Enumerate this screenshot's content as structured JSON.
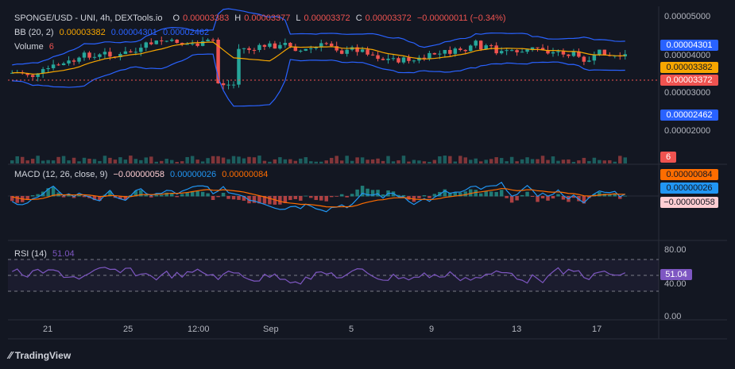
{
  "header": {
    "symbol": "SPONGE/USD - UNI, 4h, DEXTools.io",
    "ohlc": [
      {
        "k": "O",
        "v": "0.00003383"
      },
      {
        "k": "H",
        "v": "0.00003377"
      },
      {
        "k": "L",
        "v": "0.00003372"
      },
      {
        "k": "C",
        "v": "0.00003372"
      }
    ],
    "change": "−0.00000011 (−0.34%)"
  },
  "indicators": {
    "bb": {
      "label": "BB (20, 2)",
      "basis": "0.00003382",
      "upper": "0.00004301",
      "lower": "0.00002462"
    },
    "volume": {
      "label": "Volume",
      "value": "6"
    },
    "macd": {
      "label": "MACD (12, 26, close, 9)",
      "hist": "−0.00000058",
      "macd": "0.00000026",
      "signal": "0.00000084"
    },
    "rsi": {
      "label": "RSI (14)",
      "value": "51.04"
    }
  },
  "price_axis": [
    "0.00005000",
    "0.00004000",
    "0.00003000",
    "0.00002000"
  ],
  "price_badges": {
    "upper": "0.00004301",
    "basis": "0.00003382",
    "last": "0.00003372",
    "lower": "0.00002462",
    "volume": "6"
  },
  "macd_badges": {
    "signal": "0.00000084",
    "macd": "0.00000026",
    "hist": "−0.00000058"
  },
  "rsi_axis": [
    "80.00",
    "40.00",
    "0.00"
  ],
  "rsi_badge": "51.04",
  "time_axis": [
    "21",
    "25",
    "12:00",
    "Sep",
    "5",
    "9",
    "13",
    "17"
  ],
  "logo": "TradingView",
  "colors": {
    "bg": "#131722",
    "up": "#26a69a",
    "down": "#ef5350",
    "bb": "#2962ff",
    "basis": "#f7a600",
    "macd": "#2196f3",
    "signal": "#ff6d00",
    "rsi": "#7e57c2"
  },
  "chart_data": {
    "type": "candlestick",
    "title": "SPONGE/USD - UNI, 4h, DEXTools.io",
    "time_labels": [
      "21",
      "25",
      "12:00",
      "Sep",
      "5",
      "9",
      "13",
      "17"
    ],
    "price_ticks": [
      5e-05,
      4e-05,
      3e-05,
      2e-05
    ],
    "last_close": 3.372e-05,
    "bollinger": {
      "length": 20,
      "mult": 2,
      "basis": 3.382e-05,
      "upper": 4.301e-05,
      "lower": 2.462e-05
    },
    "macd": {
      "fast": 12,
      "slow": 26,
      "signal": 9,
      "hist": -5.8e-07,
      "macd": 2.6e-07,
      "signal_value": 8.4e-07
    },
    "rsi": {
      "length": 14,
      "value": 51.04,
      "upper": 70,
      "lower": 30,
      "ticks": [
        80,
        40,
        0
      ]
    },
    "volume": 6
  }
}
